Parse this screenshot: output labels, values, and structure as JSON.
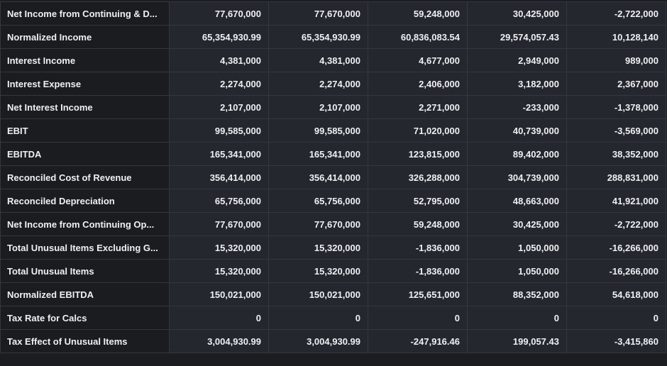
{
  "table": {
    "rows": [
      [
        "Net Income from Continuing & D...",
        "77,670,000",
        "77,670,000",
        "59,248,000",
        "30,425,000",
        "-2,722,000"
      ],
      [
        "Normalized Income",
        "65,354,930.99",
        "65,354,930.99",
        "60,836,083.54",
        "29,574,057.43",
        "10,128,140"
      ],
      [
        "Interest Income",
        "4,381,000",
        "4,381,000",
        "4,677,000",
        "2,949,000",
        "989,000"
      ],
      [
        "Interest Expense",
        "2,274,000",
        "2,274,000",
        "2,406,000",
        "3,182,000",
        "2,367,000"
      ],
      [
        "Net Interest Income",
        "2,107,000",
        "2,107,000",
        "2,271,000",
        "-233,000",
        "-1,378,000"
      ],
      [
        "EBIT",
        "99,585,000",
        "99,585,000",
        "71,020,000",
        "40,739,000",
        "-3,569,000"
      ],
      [
        "EBITDA",
        "165,341,000",
        "165,341,000",
        "123,815,000",
        "89,402,000",
        "38,352,000"
      ],
      [
        "Reconciled Cost of Revenue",
        "356,414,000",
        "356,414,000",
        "326,288,000",
        "304,739,000",
        "288,831,000"
      ],
      [
        "Reconciled Depreciation",
        "65,756,000",
        "65,756,000",
        "52,795,000",
        "48,663,000",
        "41,921,000"
      ],
      [
        "Net Income from Continuing Op...",
        "77,670,000",
        "77,670,000",
        "59,248,000",
        "30,425,000",
        "-2,722,000"
      ],
      [
        "Total Unusual Items Excluding G...",
        "15,320,000",
        "15,320,000",
        "-1,836,000",
        "1,050,000",
        "-16,266,000"
      ],
      [
        "Total Unusual Items",
        "15,320,000",
        "15,320,000",
        "-1,836,000",
        "1,050,000",
        "-16,266,000"
      ],
      [
        "Normalized EBITDA",
        "150,021,000",
        "150,021,000",
        "125,651,000",
        "88,352,000",
        "54,618,000"
      ],
      [
        "Tax Rate for Calcs",
        "0",
        "0",
        "0",
        "0",
        "0"
      ],
      [
        "Tax Effect of Unusual Items",
        "3,004,930.99",
        "3,004,930.99",
        "-247,916.46",
        "199,057.43",
        "-3,415,860"
      ]
    ]
  }
}
